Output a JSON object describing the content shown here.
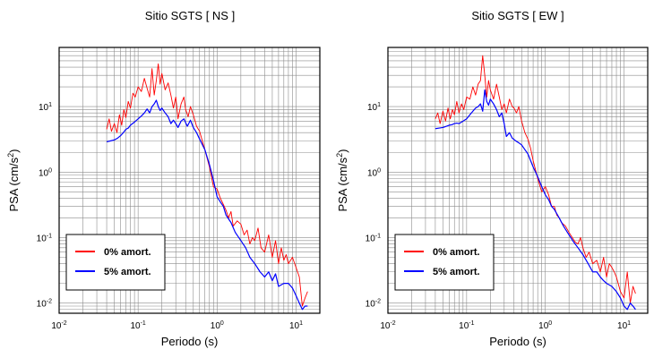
{
  "chart_data": [
    {
      "type": "line",
      "title": "Sitio SGTS [ NS ]",
      "xlabel": "Periodo (s)",
      "ylabel_base": "PSA (cm/s",
      "ylabel_exp": "2",
      "ylabel_close": ")",
      "x_scale": "log",
      "y_scale": "log",
      "xlim": [
        0.01,
        20
      ],
      "ylim": [
        0.007,
        80
      ],
      "grid": true,
      "legend_position": "bottom-left",
      "x_ticks": [
        {
          "base": "10",
          "exp": "-2"
        },
        {
          "base": "10",
          "exp": "-1"
        },
        {
          "base": "10",
          "exp": "0"
        },
        {
          "base": "10",
          "exp": "1"
        }
      ],
      "y_ticks": [
        {
          "base": "10",
          "exp": "-2"
        },
        {
          "base": "10",
          "exp": "-1"
        },
        {
          "base": "10",
          "exp": "0"
        },
        {
          "base": "10",
          "exp": "1"
        }
      ],
      "series": [
        {
          "name": "0% amort.",
          "color": "#ff0000",
          "x": [
            0.04,
            0.043,
            0.046,
            0.05,
            0.054,
            0.058,
            0.062,
            0.066,
            0.07,
            0.075,
            0.08,
            0.086,
            0.092,
            0.1,
            0.11,
            0.12,
            0.13,
            0.14,
            0.15,
            0.16,
            0.17,
            0.18,
            0.19,
            0.2,
            0.22,
            0.24,
            0.26,
            0.28,
            0.3,
            0.32,
            0.35,
            0.38,
            0.4,
            0.43,
            0.46,
            0.5,
            0.55,
            0.6,
            0.65,
            0.7,
            0.8,
            0.9,
            1.0,
            1.1,
            1.2,
            1.3,
            1.4,
            1.5,
            1.6,
            1.8,
            2.0,
            2.2,
            2.4,
            2.6,
            2.8,
            3.0,
            3.3,
            3.6,
            4.0,
            4.5,
            5.0,
            5.5,
            6.0,
            6.5,
            7.0,
            7.5,
            8.0,
            9.0,
            10.0,
            11.0,
            12.0,
            13.0,
            14.0
          ],
          "y": [
            4.5,
            6.5,
            4.2,
            5.5,
            4.0,
            7.5,
            5.2,
            9.0,
            6.8,
            12.0,
            9.5,
            16.0,
            14.0,
            20.0,
            17.0,
            27.0,
            19.0,
            14.0,
            38.0,
            15.0,
            25.0,
            45.0,
            22.0,
            32.0,
            18.0,
            23.0,
            15.0,
            9.5,
            14.0,
            6.5,
            11.0,
            14.0,
            9.0,
            7.0,
            10.0,
            7.5,
            5.0,
            4.2,
            3.0,
            2.2,
            1.2,
            0.6,
            0.55,
            0.4,
            0.32,
            0.26,
            0.2,
            0.25,
            0.15,
            0.18,
            0.16,
            0.11,
            0.13,
            0.08,
            0.1,
            0.09,
            0.14,
            0.07,
            0.06,
            0.11,
            0.05,
            0.09,
            0.04,
            0.07,
            0.045,
            0.055,
            0.04,
            0.05,
            0.035,
            0.025,
            0.009,
            0.012,
            0.015
          ]
        },
        {
          "name": "5% amort.",
          "color": "#0000ff",
          "x": [
            0.04,
            0.045,
            0.05,
            0.055,
            0.06,
            0.065,
            0.07,
            0.075,
            0.08,
            0.09,
            0.1,
            0.11,
            0.12,
            0.13,
            0.14,
            0.15,
            0.16,
            0.17,
            0.18,
            0.19,
            0.2,
            0.22,
            0.24,
            0.26,
            0.28,
            0.3,
            0.32,
            0.35,
            0.38,
            0.42,
            0.46,
            0.5,
            0.55,
            0.6,
            0.7,
            0.8,
            0.9,
            1.0,
            1.1,
            1.2,
            1.3,
            1.5,
            1.7,
            2.0,
            2.3,
            2.6,
            3.0,
            3.5,
            4.0,
            4.5,
            5.0,
            5.5,
            6.0,
            7.0,
            8.0,
            9.0,
            10.0,
            11.0,
            12.0,
            13.0,
            14.0
          ],
          "y": [
            2.9,
            3.0,
            3.1,
            3.3,
            3.6,
            4.0,
            4.5,
            4.7,
            5.2,
            5.8,
            6.5,
            7.2,
            8.0,
            9.2,
            8.0,
            10.0,
            11.0,
            12.5,
            10.0,
            8.7,
            9.5,
            8.0,
            7.0,
            5.5,
            6.2,
            5.5,
            4.8,
            6.0,
            6.5,
            5.0,
            6.2,
            4.8,
            4.0,
            3.2,
            2.2,
            1.3,
            0.75,
            0.42,
            0.35,
            0.3,
            0.22,
            0.17,
            0.12,
            0.09,
            0.07,
            0.05,
            0.04,
            0.03,
            0.025,
            0.03,
            0.022,
            0.028,
            0.018,
            0.02,
            0.02,
            0.017,
            0.013,
            0.01,
            0.008,
            0.009,
            0.009
          ]
        }
      ]
    },
    {
      "type": "line",
      "title": "Sitio SGTS [ EW ]",
      "xlabel": "Periodo (s)",
      "ylabel_base": "PSA (cm/s",
      "ylabel_exp": "2",
      "ylabel_close": ")",
      "x_scale": "log",
      "y_scale": "log",
      "xlim": [
        0.01,
        20
      ],
      "ylim": [
        0.007,
        80
      ],
      "grid": true,
      "legend_position": "bottom-left",
      "x_ticks": [
        {
          "base": "10",
          "exp": "-2"
        },
        {
          "base": "10",
          "exp": "-1"
        },
        {
          "base": "10",
          "exp": "0"
        },
        {
          "base": "10",
          "exp": "1"
        }
      ],
      "y_ticks": [
        {
          "base": "10",
          "exp": "-2"
        },
        {
          "base": "10",
          "exp": "-1"
        },
        {
          "base": "10",
          "exp": "0"
        },
        {
          "base": "10",
          "exp": "1"
        }
      ],
      "series": [
        {
          "name": "0% amort.",
          "color": "#ff0000",
          "x": [
            0.04,
            0.043,
            0.046,
            0.05,
            0.054,
            0.058,
            0.062,
            0.066,
            0.07,
            0.075,
            0.08,
            0.086,
            0.092,
            0.1,
            0.11,
            0.12,
            0.13,
            0.14,
            0.15,
            0.16,
            0.17,
            0.18,
            0.19,
            0.2,
            0.22,
            0.24,
            0.26,
            0.28,
            0.3,
            0.32,
            0.35,
            0.38,
            0.4,
            0.43,
            0.46,
            0.5,
            0.55,
            0.6,
            0.65,
            0.7,
            0.8,
            0.9,
            1.0,
            1.1,
            1.2,
            1.3,
            1.4,
            1.5,
            1.6,
            1.8,
            2.0,
            2.2,
            2.4,
            2.6,
            2.8,
            3.0,
            3.3,
            3.6,
            4.0,
            4.5,
            5.0,
            5.5,
            6.0,
            6.5,
            7.0,
            7.5,
            8.0,
            9.0,
            10.0,
            11.0,
            12.0,
            13.0,
            14.0
          ],
          "y": [
            6.5,
            8.0,
            5.5,
            8.5,
            6.0,
            9.5,
            6.5,
            9.0,
            7.5,
            12.0,
            8.0,
            11.0,
            9.0,
            14.0,
            13.0,
            20.0,
            15.0,
            22.0,
            25.0,
            60.0,
            30.0,
            14.0,
            25.0,
            18.0,
            13.0,
            22.0,
            14.0,
            9.0,
            11.0,
            8.0,
            13.0,
            10.0,
            9.5,
            8.0,
            10.0,
            6.0,
            4.0,
            3.2,
            2.3,
            1.5,
            0.8,
            0.5,
            0.6,
            0.45,
            0.3,
            0.3,
            0.22,
            0.2,
            0.17,
            0.15,
            0.12,
            0.1,
            0.085,
            0.08,
            0.1,
            0.07,
            0.05,
            0.06,
            0.04,
            0.045,
            0.03,
            0.05,
            0.025,
            0.04,
            0.035,
            0.03,
            0.025,
            0.015,
            0.012,
            0.03,
            0.01,
            0.018,
            0.014
          ]
        },
        {
          "name": "5% amort.",
          "color": "#0000ff",
          "x": [
            0.04,
            0.045,
            0.05,
            0.055,
            0.06,
            0.065,
            0.07,
            0.075,
            0.08,
            0.09,
            0.1,
            0.11,
            0.12,
            0.13,
            0.14,
            0.15,
            0.16,
            0.17,
            0.18,
            0.19,
            0.2,
            0.22,
            0.24,
            0.26,
            0.28,
            0.3,
            0.32,
            0.35,
            0.38,
            0.42,
            0.46,
            0.5,
            0.55,
            0.6,
            0.7,
            0.8,
            0.9,
            1.0,
            1.1,
            1.2,
            1.3,
            1.5,
            1.7,
            2.0,
            2.3,
            2.6,
            3.0,
            3.5,
            4.0,
            4.5,
            5.0,
            5.5,
            6.0,
            7.0,
            8.0,
            9.0,
            10.0,
            11.0,
            12.0,
            13.0,
            14.0
          ],
          "y": [
            4.6,
            4.7,
            4.8,
            5.0,
            5.2,
            5.3,
            5.5,
            5.6,
            5.5,
            6.0,
            6.5,
            7.5,
            8.5,
            9.5,
            10.0,
            11.0,
            8.5,
            18.0,
            12.0,
            10.5,
            13.0,
            11.0,
            9.0,
            7.0,
            8.0,
            5.5,
            3.5,
            4.0,
            3.3,
            3.0,
            2.8,
            2.6,
            2.2,
            1.9,
            1.2,
            0.85,
            0.6,
            0.45,
            0.38,
            0.3,
            0.27,
            0.2,
            0.15,
            0.11,
            0.085,
            0.07,
            0.055,
            0.04,
            0.03,
            0.03,
            0.025,
            0.022,
            0.02,
            0.018,
            0.015,
            0.012,
            0.009,
            0.008,
            0.01,
            0.009,
            0.008
          ]
        }
      ]
    }
  ]
}
